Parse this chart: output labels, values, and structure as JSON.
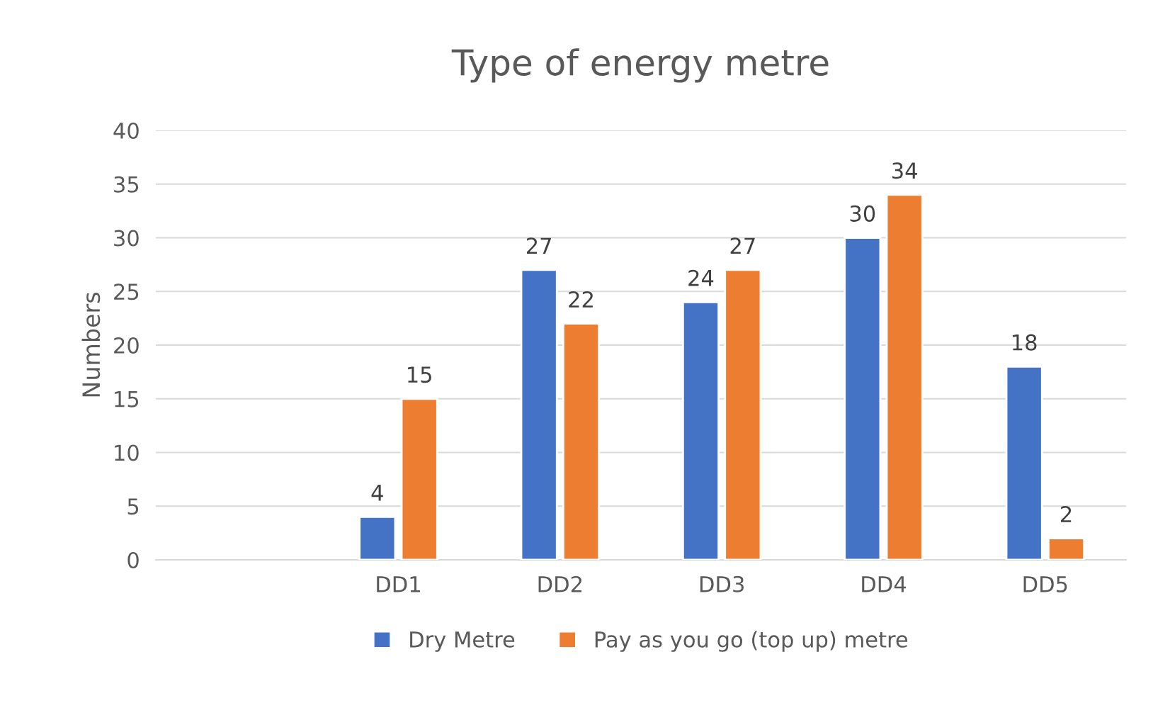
{
  "chart_data": {
    "type": "bar",
    "title": "Type of energy metre",
    "ylabel": "Numbers",
    "categories": [
      null,
      "DD1",
      "DD2",
      "DD3",
      "DD4",
      "DD5"
    ],
    "series": [
      {
        "name": "Dry Metre",
        "color": "#4472c4",
        "values": [
          null,
          4,
          27,
          24,
          30,
          18
        ]
      },
      {
        "name": "Pay as you go (top up) metre",
        "color": "#ed7d31",
        "values": [
          null,
          15,
          22,
          27,
          34,
          2
        ]
      }
    ],
    "ylim": [
      0,
      40
    ],
    "yticks": [
      0,
      5,
      10,
      15,
      20,
      25,
      30,
      35,
      40
    ],
    "grid": "y",
    "legend": "bottom",
    "data_labels": true
  }
}
